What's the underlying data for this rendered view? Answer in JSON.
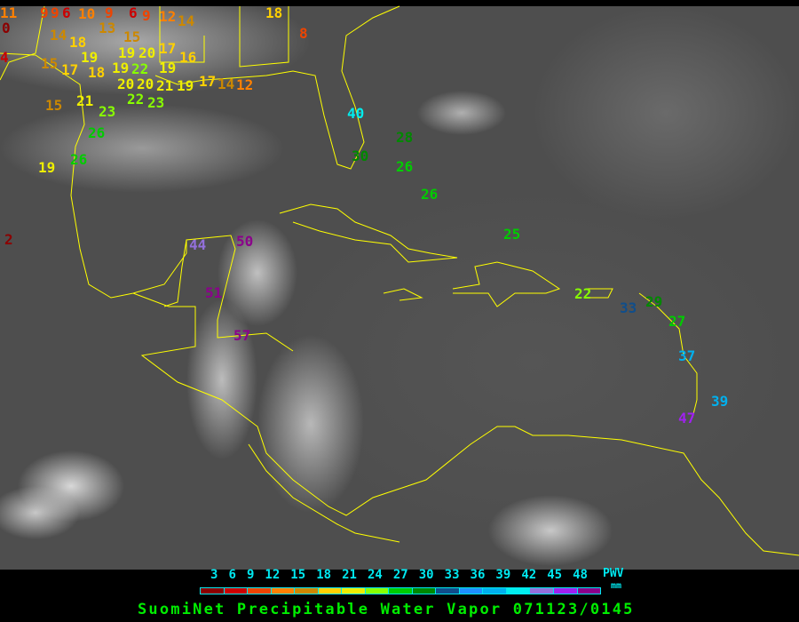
{
  "title": "SuomiNet Precipitable Water Vapor 071123/0145",
  "legend": {
    "unit_top": "PWV",
    "unit_bottom": "mm",
    "ticks": [
      "3",
      "6",
      "9",
      "12",
      "15",
      "18",
      "21",
      "24",
      "27",
      "30",
      "33",
      "36",
      "39",
      "42",
      "45",
      "48"
    ],
    "colors": [
      "#8b0000",
      "#cc0000",
      "#ee4400",
      "#ff8000",
      "#cc8800",
      "#ffd000",
      "#eeee00",
      "#88ff00",
      "#00cc00",
      "#008800",
      "#104e8b",
      "#1e90ff",
      "#00b0ee",
      "#00eeee",
      "#9370db",
      "#a020f0",
      "#8b008b"
    ]
  },
  "coastline_color": "#ffff00",
  "stations": [
    {
      "value": "11"
    },
    {
      "value": "0"
    },
    {
      "value": "9"
    },
    {
      "value": "9"
    },
    {
      "value": "6"
    },
    {
      "value": "10"
    },
    {
      "value": "9"
    },
    {
      "value": "6"
    },
    {
      "value": "9"
    },
    {
      "value": "12"
    },
    {
      "value": "14"
    },
    {
      "value": "14"
    },
    {
      "value": "13"
    },
    {
      "value": "15"
    },
    {
      "value": "18"
    },
    {
      "value": "19"
    },
    {
      "value": "19"
    },
    {
      "value": "20"
    },
    {
      "value": "17"
    },
    {
      "value": "16"
    },
    {
      "value": "15"
    },
    {
      "value": "17"
    },
    {
      "value": "18"
    },
    {
      "value": "19"
    },
    {
      "value": "22"
    },
    {
      "value": "19"
    },
    {
      "value": "20"
    },
    {
      "value": "22"
    },
    {
      "value": "20"
    },
    {
      "value": "21"
    },
    {
      "value": "19"
    },
    {
      "value": "17"
    },
    {
      "value": "14"
    },
    {
      "value": "12"
    },
    {
      "value": "23"
    },
    {
      "value": "15"
    },
    {
      "value": "21"
    },
    {
      "value": "23"
    },
    {
      "value": "26"
    },
    {
      "value": "26"
    },
    {
      "value": "19"
    },
    {
      "value": "18"
    },
    {
      "value": "8"
    },
    {
      "value": "4"
    },
    {
      "value": "2"
    },
    {
      "value": "40"
    },
    {
      "value": "28"
    },
    {
      "value": "30"
    },
    {
      "value": "26"
    },
    {
      "value": "26"
    },
    {
      "value": "25"
    },
    {
      "value": "22"
    },
    {
      "value": "33"
    },
    {
      "value": "29"
    },
    {
      "value": "27"
    },
    {
      "value": "37"
    },
    {
      "value": "39"
    },
    {
      "value": "47"
    },
    {
      "value": "44"
    },
    {
      "value": "50"
    },
    {
      "value": "51"
    },
    {
      "value": "57"
    }
  ]
}
